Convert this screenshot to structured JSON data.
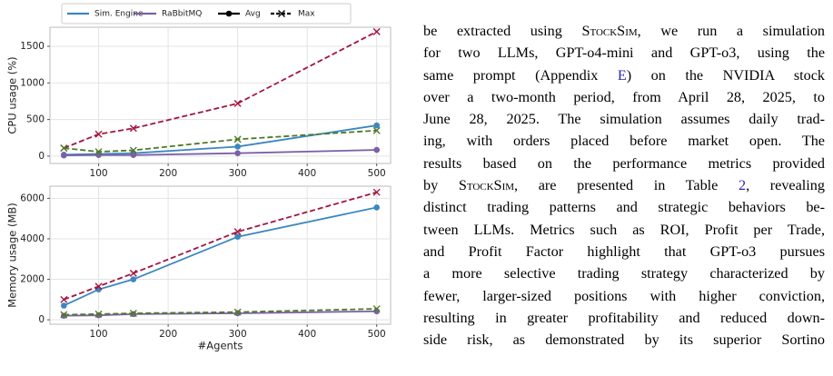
{
  "chart_data": [
    {
      "type": "line",
      "ylabel": "CPU usage (%)",
      "x": [
        50,
        100,
        150,
        300,
        500
      ],
      "xlim": [
        30,
        520
      ],
      "xticks": [
        100,
        200,
        300,
        400,
        500
      ],
      "ylim": [
        -100,
        1760
      ],
      "yticks": [
        0,
        500,
        1000,
        1500
      ],
      "grid": true,
      "series": [
        {
          "color": "#3b87c0",
          "dashed": false,
          "marker": "o",
          "values": [
            20,
            30,
            40,
            130,
            420
          ]
        },
        {
          "color": "#a3153d",
          "dashed": true,
          "marker": "x",
          "values": [
            110,
            300,
            380,
            720,
            1700
          ]
        },
        {
          "color": "#7c5fa7",
          "dashed": false,
          "marker": "o",
          "values": [
            10,
            15,
            15,
            40,
            85
          ]
        },
        {
          "color": "#4f7a28",
          "dashed": true,
          "marker": "x",
          "values": [
            110,
            60,
            80,
            230,
            350
          ]
        }
      ]
    },
    {
      "type": "line",
      "ylabel": "Memory usage (MB)",
      "xlabel": "#Agents",
      "x": [
        50,
        100,
        150,
        300,
        500
      ],
      "xlim": [
        30,
        520
      ],
      "xticks": [
        100,
        200,
        300,
        400,
        500
      ],
      "ylim": [
        -220,
        6600
      ],
      "yticks": [
        0,
        2000,
        4000,
        6000
      ],
      "grid": true,
      "series": [
        {
          "color": "#3b87c0",
          "dashed": false,
          "marker": "o",
          "values": [
            700,
            1500,
            2000,
            4100,
            5550
          ]
        },
        {
          "color": "#a3153d",
          "dashed": true,
          "marker": "x",
          "values": [
            1000,
            1650,
            2300,
            4350,
            6300
          ]
        },
        {
          "color": "#7c5fa7",
          "dashed": false,
          "marker": "o",
          "values": [
            200,
            220,
            280,
            320,
            420
          ]
        },
        {
          "color": "#4f7a28",
          "dashed": true,
          "marker": "x",
          "values": [
            250,
            280,
            320,
            380,
            540
          ]
        }
      ]
    }
  ],
  "legend": {
    "entries": [
      {
        "name": "Sim. Engine",
        "color": "#3b87c0"
      },
      {
        "name": "RaBbitMQ",
        "color": "#7c5fa7"
      },
      {
        "name": "Avg",
        "color": "#000000",
        "marker": "o",
        "dashed": false
      },
      {
        "name": "Max",
        "color": "#000000",
        "marker": "x",
        "dashed": true
      }
    ]
  },
  "text": {
    "lines": [
      [
        "be extracted using ",
        {
          "text": "StockSim",
          "style": "smallcaps"
        },
        ", we run a simulation"
      ],
      [
        "for two LLMs, GPT-o4-mini and GPT-o3, using the"
      ],
      [
        "same prompt (Appendix ",
        {
          "text": "E",
          "style": "link"
        },
        ") on the NVIDIA stock"
      ],
      [
        "over a two-month period, from April 28, 2025, to"
      ],
      [
        "June 28, 2025. The simulation assumes daily trad-"
      ],
      [
        "ing, with orders placed before market open. The"
      ],
      [
        "results based on the performance metrics provided"
      ],
      [
        "by ",
        {
          "text": "StockSim",
          "style": "smallcaps"
        },
        ", are presented in Table ",
        {
          "text": "2",
          "style": "link"
        },
        ", revealing"
      ],
      [
        "distinct trading patterns and strategic behaviors be-"
      ],
      [
        "tween LLMs. Metrics such as ROI, Profit per Trade,"
      ],
      [
        "and Profit Factor highlight that GPT-o3 pursues"
      ],
      [
        "a more selective trading strategy characterized by"
      ],
      [
        "fewer, larger-sized positions with higher conviction,"
      ],
      [
        "resulting in greater profitability and reduced down-"
      ],
      [
        "side risk, as demonstrated by its superior Sortino"
      ]
    ]
  }
}
